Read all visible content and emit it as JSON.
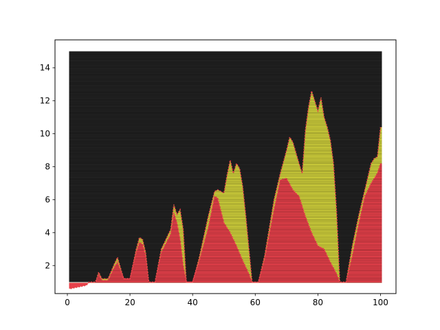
{
  "chart_data": {
    "type": "heatmap",
    "title": "",
    "xlabel": "",
    "ylabel": "",
    "xlim": [
      -3.95,
      104.95
    ],
    "ylim": [
      0.3,
      15.7
    ],
    "x_range": [
      1,
      100
    ],
    "y_range": [
      1,
      15
    ],
    "x_ticks": [
      0,
      20,
      40,
      60,
      80,
      100
    ],
    "y_ticks": [
      2,
      4,
      6,
      8,
      10,
      12,
      14
    ],
    "grid": false,
    "legend": "none",
    "categories": [
      {
        "name": "background",
        "color": "#222222",
        "note": "dense black horizontal lines"
      },
      {
        "name": "red-region",
        "color": "#e8414b"
      },
      {
        "name": "yellow-region",
        "color": "#d2d23c"
      }
    ],
    "red_boundary": [
      [
        1,
        0.6
      ],
      [
        6,
        0.8
      ],
      [
        7,
        1.0
      ],
      [
        9,
        1.0
      ],
      [
        10,
        1.5
      ],
      [
        11,
        1.1
      ],
      [
        13,
        1.1
      ],
      [
        15,
        1.9
      ],
      [
        16,
        2.2
      ],
      [
        18,
        1.2
      ],
      [
        20,
        1.2
      ],
      [
        22,
        2.8
      ],
      [
        23,
        3.4
      ],
      [
        24,
        3.3
      ],
      [
        25,
        2.6
      ],
      [
        26,
        1.0
      ],
      [
        28,
        1.0
      ],
      [
        30,
        2.8
      ],
      [
        33,
        3.9
      ],
      [
        34,
        5.2
      ],
      [
        35,
        4.6
      ],
      [
        36,
        3.6
      ],
      [
        37,
        2.0
      ],
      [
        38,
        1.0
      ],
      [
        40,
        1.0
      ],
      [
        42,
        2.2
      ],
      [
        45,
        4.3
      ],
      [
        47,
        6.2
      ],
      [
        48,
        6.1
      ],
      [
        50,
        4.6
      ],
      [
        52,
        4.0
      ],
      [
        54,
        3.2
      ],
      [
        56,
        2.3
      ],
      [
        58,
        1.5
      ],
      [
        59,
        1.0
      ],
      [
        61,
        1.0
      ],
      [
        63,
        2.4
      ],
      [
        66,
        5.4
      ],
      [
        68,
        7.2
      ],
      [
        70,
        7.3
      ],
      [
        72,
        6.6
      ],
      [
        74,
        6.2
      ],
      [
        76,
        5.0
      ],
      [
        78,
        4.0
      ],
      [
        80,
        3.2
      ],
      [
        82,
        3.0
      ],
      [
        84,
        2.2
      ],
      [
        86,
        1.5
      ],
      [
        87,
        1.0
      ],
      [
        89,
        1.0
      ],
      [
        91,
        2.6
      ],
      [
        93,
        4.5
      ],
      [
        95,
        6.2
      ],
      [
        97,
        7.0
      ],
      [
        98,
        7.3
      ],
      [
        99,
        7.6
      ],
      [
        100,
        8.2
      ]
    ],
    "yellow_boundary": [
      [
        1,
        0.6
      ],
      [
        6,
        0.8
      ],
      [
        7,
        1.0
      ],
      [
        9,
        1.0
      ],
      [
        10,
        1.6
      ],
      [
        11,
        1.2
      ],
      [
        13,
        1.2
      ],
      [
        15,
        2.1
      ],
      [
        16,
        2.5
      ],
      [
        18,
        1.2
      ],
      [
        20,
        1.2
      ],
      [
        22,
        3.0
      ],
      [
        23,
        3.7
      ],
      [
        24,
        3.6
      ],
      [
        25,
        2.8
      ],
      [
        26,
        1.0
      ],
      [
        28,
        1.0
      ],
      [
        30,
        3.0
      ],
      [
        33,
        4.2
      ],
      [
        34,
        5.7
      ],
      [
        35,
        5.1
      ],
      [
        36,
        5.4
      ],
      [
        37,
        4.2
      ],
      [
        38,
        1.0
      ],
      [
        40,
        1.0
      ],
      [
        42,
        2.4
      ],
      [
        45,
        5.0
      ],
      [
        47,
        6.5
      ],
      [
        48,
        6.6
      ],
      [
        50,
        6.4
      ],
      [
        51,
        7.5
      ],
      [
        52,
        8.4
      ],
      [
        53,
        7.6
      ],
      [
        54,
        8.2
      ],
      [
        55,
        7.9
      ],
      [
        56,
        6.8
      ],
      [
        57,
        5.0
      ],
      [
        58,
        3.0
      ],
      [
        59,
        1.0
      ],
      [
        61,
        1.0
      ],
      [
        63,
        2.6
      ],
      [
        66,
        6.0
      ],
      [
        68,
        7.6
      ],
      [
        70,
        9.0
      ],
      [
        71,
        9.8
      ],
      [
        72,
        9.5
      ],
      [
        74,
        8.2
      ],
      [
        75,
        7.6
      ],
      [
        76,
        10.2
      ],
      [
        77,
        11.6
      ],
      [
        78,
        12.6
      ],
      [
        79,
        12.0
      ],
      [
        80,
        11.4
      ],
      [
        81,
        12.2
      ],
      [
        82,
        11.0
      ],
      [
        83,
        10.4
      ],
      [
        84,
        9.6
      ],
      [
        85,
        8.2
      ],
      [
        86,
        5.2
      ],
      [
        87,
        1.0
      ],
      [
        89,
        1.0
      ],
      [
        91,
        3.2
      ],
      [
        93,
        5.0
      ],
      [
        95,
        6.6
      ],
      [
        97,
        8.2
      ],
      [
        98,
        8.5
      ],
      [
        99,
        8.6
      ],
      [
        100,
        10.4
      ]
    ]
  }
}
